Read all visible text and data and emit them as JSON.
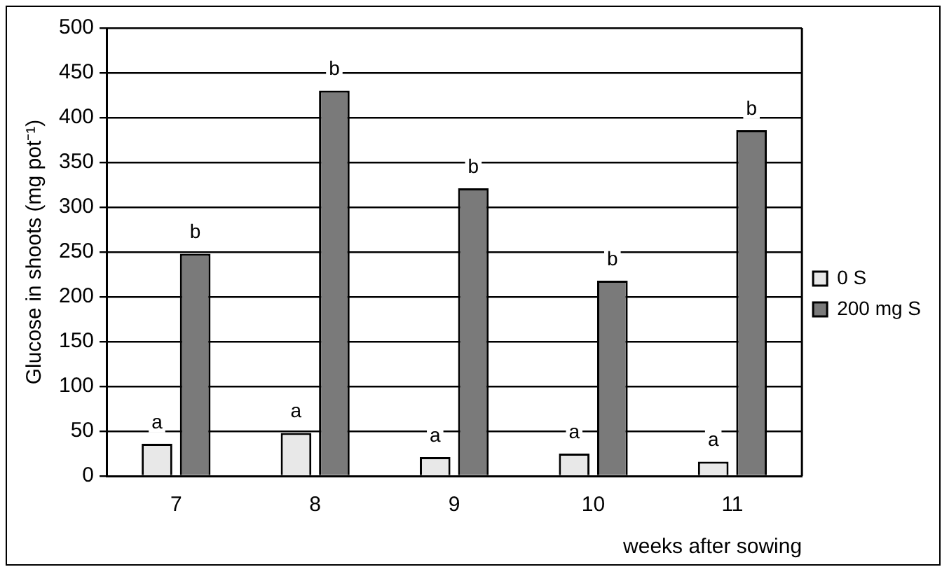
{
  "chart_data": {
    "type": "bar",
    "categories": [
      "7",
      "8",
      "9",
      "10",
      "11"
    ],
    "series": [
      {
        "name": "0 S",
        "color": "#e8e8e8",
        "values": [
          36,
          48,
          21,
          25,
          16
        ]
      },
      {
        "name": "200 mg S",
        "color": "#7a7a7a",
        "values": [
          248,
          430,
          321,
          218,
          386
        ]
      }
    ],
    "ylabel": "Glucose in shoots (mg pot⁻¹)",
    "xlabel": "weeks after sowing",
    "ylim": [
      0,
      500
    ],
    "yticks": [
      0,
      50,
      100,
      150,
      200,
      250,
      300,
      350,
      400,
      450,
      500
    ],
    "grid": "y",
    "legend": "right",
    "annotations": [
      {
        "text": "a",
        "x": "7",
        "y": 36
      },
      {
        "text": "b",
        "x": "7",
        "y": 248
      },
      {
        "text": "a",
        "x": "8",
        "y": 48
      },
      {
        "text": "b",
        "x": "8",
        "y": 430
      },
      {
        "text": "a",
        "x": "9",
        "y": 21
      },
      {
        "text": "b",
        "x": "9",
        "y": 321
      },
      {
        "text": "a",
        "x": "10",
        "y": 25
      },
      {
        "text": "b",
        "x": "10",
        "y": 218
      },
      {
        "text": "a",
        "x": "11",
        "y": 16
      },
      {
        "text": "b",
        "x": "11",
        "y": 386
      }
    ]
  }
}
